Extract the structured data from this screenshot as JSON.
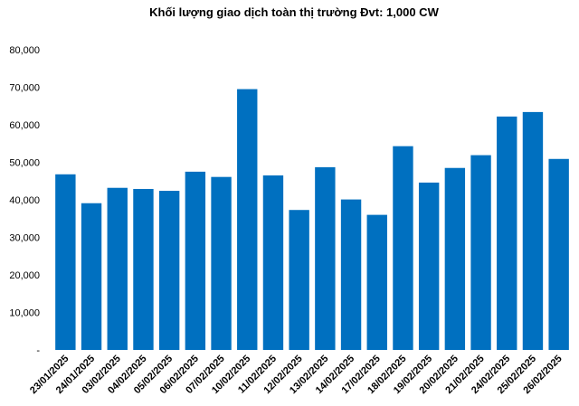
{
  "chart_data": {
    "type": "bar",
    "title": "Khối lượng giao dịch toàn thị trường Đvt: 1,000 CW",
    "xlabel": "",
    "ylabel": "",
    "categories": [
      "23/01/2025",
      "24/01/2025",
      "03/02/2025",
      "04/02/2025",
      "05/02/2025",
      "06/02/2025",
      "07/02/2025",
      "10/02/2025",
      "11/02/2025",
      "12/02/2025",
      "13/02/2025",
      "14/02/2025",
      "17/02/2025",
      "18/02/2025",
      "19/02/2025",
      "20/02/2025",
      "21/02/2025",
      "24/02/2025",
      "25/02/2025",
      "26/02/2025"
    ],
    "values": [
      46800,
      39100,
      43200,
      42900,
      42400,
      47500,
      46100,
      69500,
      46500,
      37300,
      48700,
      40100,
      36000,
      54300,
      44600,
      48500,
      51900,
      62200,
      63400,
      50900
    ],
    "ylim": [
      0,
      80000
    ],
    "yticks": [
      0,
      10000,
      20000,
      30000,
      40000,
      50000,
      60000,
      70000,
      80000
    ],
    "ytick_labels": [
      "-",
      "10,000",
      "20,000",
      "30,000",
      "40,000",
      "50,000",
      "60,000",
      "70,000",
      "80,000"
    ],
    "bar_color": "#0070C0",
    "grid": false,
    "legend": false
  }
}
